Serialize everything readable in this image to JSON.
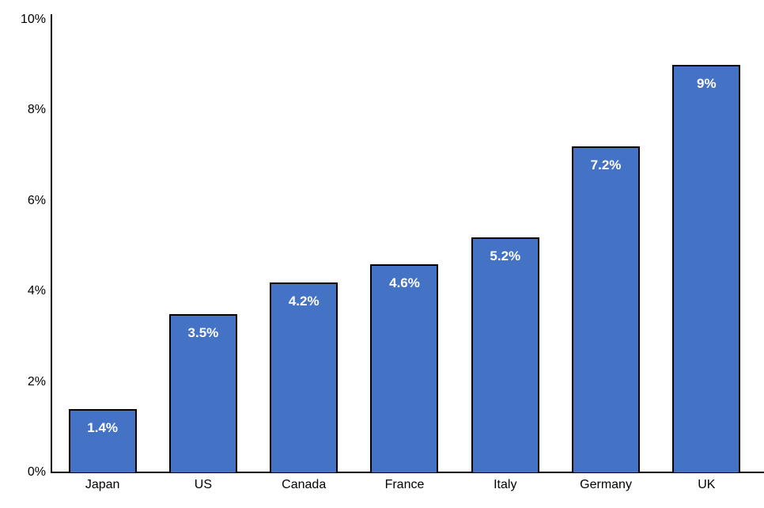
{
  "chart_data": {
    "type": "bar",
    "categories": [
      "Japan",
      "US",
      "Canada",
      "France",
      "Italy",
      "Germany",
      "UK"
    ],
    "values": [
      1.4,
      3.5,
      4.2,
      4.6,
      5.2,
      7.2,
      9
    ],
    "value_labels": [
      "1.4%",
      "3.5%",
      "4.2%",
      "4.6%",
      "5.2%",
      "7.2%",
      "9%"
    ],
    "title": "",
    "xlabel": "",
    "ylabel": "",
    "ylim": [
      0,
      10
    ],
    "y_ticks": [
      {
        "value": 0,
        "label": "0%"
      },
      {
        "value": 2,
        "label": "2%"
      },
      {
        "value": 4,
        "label": "4%"
      },
      {
        "value": 6,
        "label": "6%"
      },
      {
        "value": 8,
        "label": "8%"
      },
      {
        "value": 10,
        "label": "10%"
      }
    ],
    "grid": false,
    "legend": "none",
    "bar_fill_color": "#4472c4",
    "bar_border_color": "#000000",
    "value_label_color": "#ffffff",
    "axis_color": "#000000"
  }
}
